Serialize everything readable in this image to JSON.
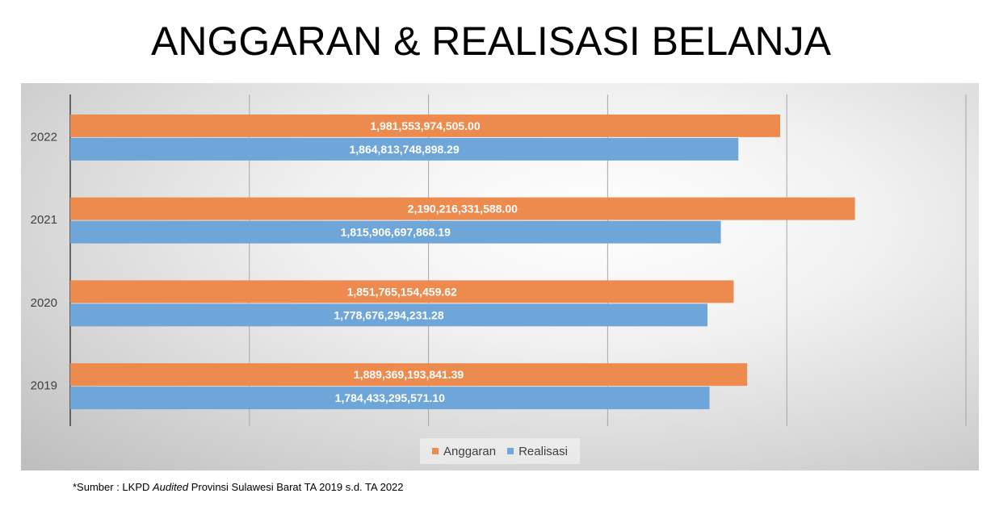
{
  "title": "ANGGARAN & REALISASI BELANJA",
  "footnote": {
    "prefix": "*Sumber : LKPD ",
    "italic": "Audited",
    "suffix": " Provinsi Sulawesi Barat TA 2019 s.d. TA 2022"
  },
  "colors": {
    "anggaran": "#ed8b4f",
    "realisasi": "#6fa6d9"
  },
  "chart_data": {
    "type": "bar",
    "orientation": "horizontal",
    "categories": [
      "2022",
      "2021",
      "2020",
      "2019"
    ],
    "series": [
      {
        "name": "Anggaran",
        "values": [
          1981553974505.0,
          2190216331588.0,
          1851765154459.62,
          1889369193841.39
        ],
        "labels": [
          "1,981,553,974,505.00",
          "2,190,216,331,588.00",
          "1,851,765,154,459.62",
          "1,889,369,193,841.39"
        ]
      },
      {
        "name": "Realisasi",
        "values": [
          1864813748898.29,
          1815906697868.19,
          1778676294231.28,
          1784433295571.1
        ],
        "labels": [
          "1,864,813,748,898.29",
          "1,815,906,697,868.19",
          "1,778,676,294,231.28",
          "1,784,433,295,571.10"
        ]
      }
    ],
    "xlim": [
      0,
      2500000000000
    ],
    "x_tick_labels_visible": false,
    "grid": true,
    "legend": "bottom"
  }
}
